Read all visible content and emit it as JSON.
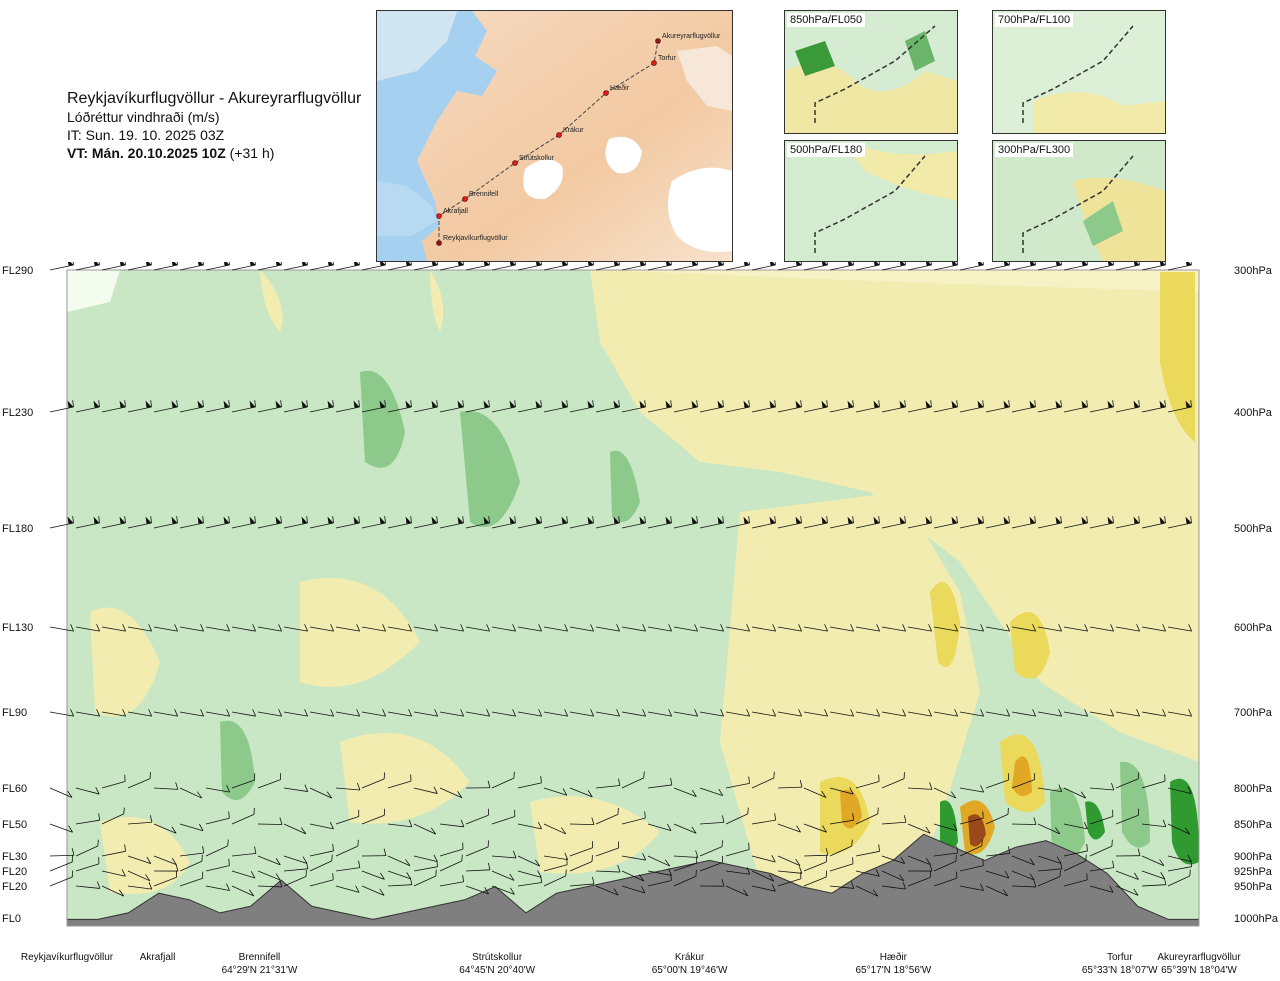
{
  "header": {
    "route": "Reykjavíkurflugvöllur - Akureyrarflugvöllur",
    "product": "Lóðréttur vindhraði (m/s)",
    "issue_time": "IT: Sun. 19. 10. 2025 03Z",
    "valid_time": "VT: Mán. 20.10.2025 10Z",
    "lead": "(+31 h)"
  },
  "main_map": {
    "waypoints": [
      {
        "name": "Reykjavíkurflugvöllur"
      },
      {
        "name": "Akrafjall"
      },
      {
        "name": "Brennifell"
      },
      {
        "name": "Strútskollur"
      },
      {
        "name": "Krákur"
      },
      {
        "name": "Hæðir"
      },
      {
        "name": "Torfur"
      },
      {
        "name": "Akureyrarflugvöllur"
      }
    ]
  },
  "level_maps": [
    {
      "label": "850hPa/FL050"
    },
    {
      "label": "700hPa/FL100"
    },
    {
      "label": "500hPa/FL180"
    },
    {
      "label": "300hPa/FL300"
    }
  ],
  "chart_data": {
    "type": "heatmap",
    "title": "Lóðréttur vindhraði (m/s)",
    "y_left_levels": [
      "FL290",
      "FL230",
      "FL180",
      "FL130",
      "FL90",
      "FL60",
      "FL50",
      "FL30",
      "FL20",
      "FL20",
      "FL0"
    ],
    "y_right_levels": [
      "300hPa",
      "400hPa",
      "500hPa",
      "600hPa",
      "700hPa",
      "800hPa",
      "850hPa",
      "900hPa",
      "925hPa",
      "950hPa",
      "1000hPa"
    ],
    "pressure_hPa": [
      300,
      400,
      500,
      600,
      700,
      800,
      850,
      900,
      925,
      950,
      1000
    ],
    "x_points": [
      {
        "name": "Reykjavíkurflugvöllur",
        "coord": ""
      },
      {
        "name": "Akrafjall",
        "coord": ""
      },
      {
        "name": "Brennifell",
        "coord": "64°29'N 21°31'W"
      },
      {
        "name": "Strútskollur",
        "coord": "64°45'N 20°40'W"
      },
      {
        "name": "Krákur",
        "coord": "65°00'N 19°46'W"
      },
      {
        "name": "Hæðir",
        "coord": "65°17'N 18°56'W"
      },
      {
        "name": "Torfur",
        "coord": "65°33'N 18°07'W"
      },
      {
        "name": "Akureyrarflugvöllur",
        "coord": "65°39'N 18°04'W"
      }
    ],
    "x_positions_fraction": [
      0.0,
      0.08,
      0.17,
      0.38,
      0.55,
      0.73,
      0.93,
      1.0
    ],
    "terrain_fraction": [
      0.01,
      0.01,
      0.02,
      0.05,
      0.04,
      0.02,
      0.03,
      0.07,
      0.03,
      0.02,
      0.01,
      0.02,
      0.03,
      0.04,
      0.06,
      0.02,
      0.05,
      0.06,
      0.07,
      0.08,
      0.09,
      0.1,
      0.09,
      0.08,
      0.06,
      0.05,
      0.08,
      0.1,
      0.14,
      0.12,
      0.1,
      0.12,
      0.13,
      0.11,
      0.08,
      0.03,
      0.01,
      0.01
    ],
    "colors": {
      "strong_down": "#2e9a30",
      "down": "#8cc98a",
      "weak_down": "#c8e6c4",
      "zero": "#f4fbef",
      "weak_up": "#f3ecb0",
      "up": "#ead95a",
      "strong_up": "#e0a825",
      "extreme_up": "#9a4a1a",
      "terrain": "#7f7f7f"
    }
  }
}
